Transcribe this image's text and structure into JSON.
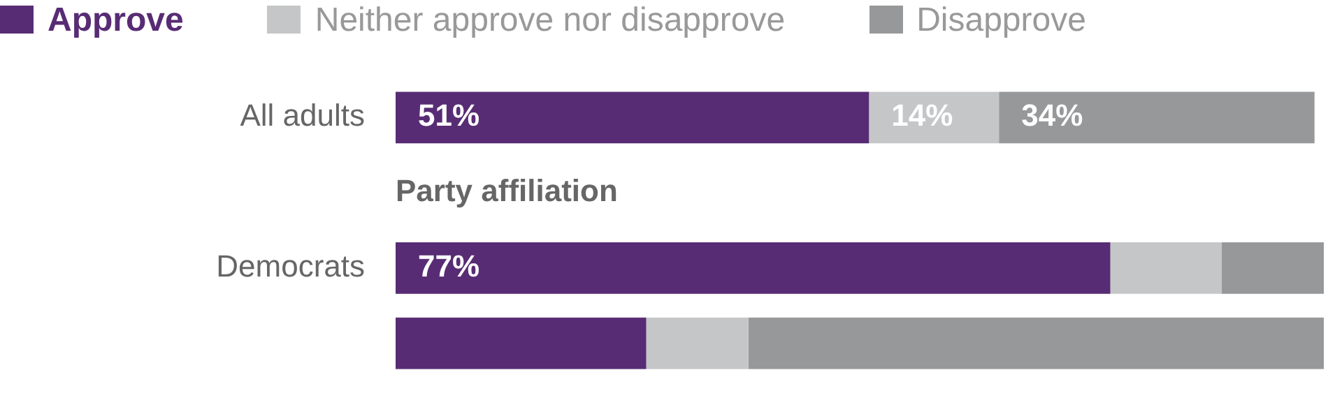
{
  "chart_data": {
    "type": "bar",
    "orientation": "horizontal",
    "stacked": true,
    "legend": "top left",
    "tick_labels": "y",
    "categories": [
      "All adults",
      null,
      "Democrats",
      null
    ],
    "series": [
      {
        "name": "Approve",
        "color": "#582c74",
        "values": [
          51,
          null,
          77,
          27
        ],
        "value_labels": [
          "51%",
          null,
          "77%",
          null
        ]
      },
      {
        "name": "Neither approve nor disapprove",
        "color": "#c5c6c8",
        "values": [
          14,
          null,
          12,
          11
        ],
        "value_labels": [
          "14%",
          null,
          null,
          null
        ]
      },
      {
        "name": "Disapprove",
        "color": "#97989a",
        "values": [
          34,
          null,
          11,
          62
        ],
        "value_labels": [
          "34%",
          null,
          null,
          null
        ]
      }
    ],
    "annotations": [
      "Party affiliation"
    ]
  }
}
